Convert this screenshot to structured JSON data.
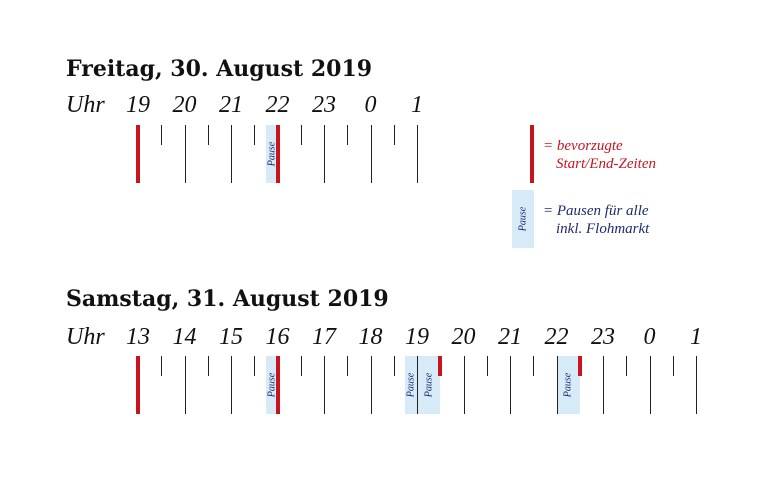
{
  "days": [
    {
      "title": "Freitag, 30. August 2019",
      "uhr_label": "Uhr",
      "hours": [
        "19",
        "20",
        "21",
        "22",
        "23",
        "0",
        "1"
      ],
      "pauses": [
        {
          "start": 2.75,
          "end": 3.0,
          "label": "Pause"
        }
      ],
      "preferred_times": [
        0,
        3.0
      ]
    },
    {
      "title": "Samstag, 31. August 2019",
      "uhr_label": "Uhr",
      "hours": [
        "13",
        "14",
        "15",
        "16",
        "17",
        "18",
        "19",
        "20",
        "21",
        "22",
        "23",
        "0",
        "1"
      ],
      "pauses": [
        {
          "start": 2.75,
          "end": 3.0,
          "label": "Pause"
        },
        {
          "start": 5.75,
          "end": 6.0,
          "label": "Pause"
        },
        {
          "start": 6.0,
          "end": 6.5,
          "label": "Pause"
        },
        {
          "start": 9.0,
          "end": 9.5,
          "label": "Pause"
        }
      ],
      "preferred_times": [
        0,
        3.0
      ],
      "preferred_short_times": [
        6.5,
        9.5
      ]
    }
  ],
  "legend": {
    "preferred_line1": "= bevorzugte",
    "preferred_line2": "Start/End-Zeiten",
    "pause_label": "Pause",
    "pause_line1": "= Pausen für alle",
    "pause_line2": "inkl. Flohmarkt"
  },
  "colors": {
    "preferred": "#c8141e",
    "pause_fill": "#d6eaf8",
    "legend_blue": "#1f2a6e"
  }
}
